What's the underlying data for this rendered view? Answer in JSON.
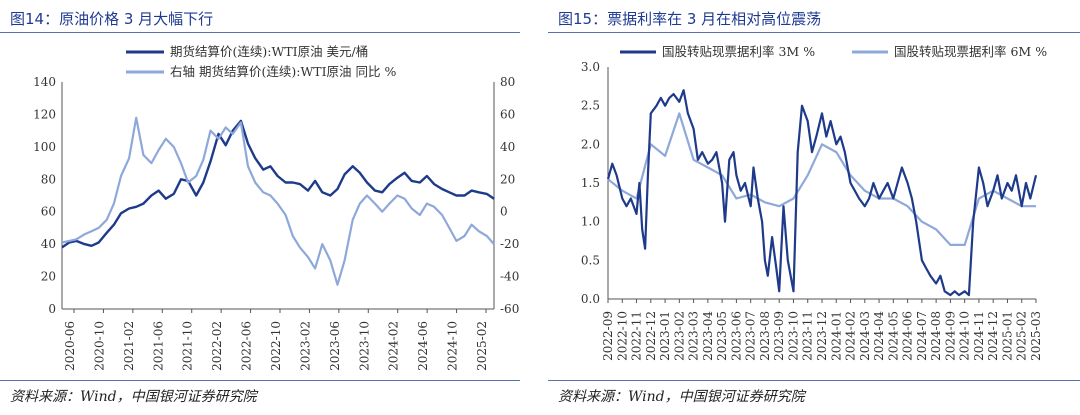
{
  "charts": {
    "left": {
      "fig_title": "图14：原油价格 3 月大幅下行",
      "source": "资料来源：Wind，中国银河证券研究院"
    },
    "right": {
      "fig_title": "图15：票据利率在 3 月在相对高位震荡",
      "source": "资料来源：Wind，中国银河证券研究院"
    }
  },
  "chart_data": [
    {
      "type": "line",
      "title": "图14：原油价格 3 月大幅下行",
      "x_ticks": [
        "2020-06",
        "2020-10",
        "2021-02",
        "2021-06",
        "2021-10",
        "2022-02",
        "2022-06",
        "2022-10",
        "2023-02",
        "2023-06",
        "2023-10",
        "2024-02",
        "2024-06",
        "2024-10",
        "2025-02"
      ],
      "y_left": {
        "min": 0,
        "max": 140,
        "ticks": [
          0,
          20,
          40,
          60,
          80,
          100,
          120,
          140
        ]
      },
      "y_right": {
        "min": -60,
        "max": 80,
        "ticks": [
          -60,
          -40,
          -20,
          0,
          20,
          40,
          60,
          80
        ]
      },
      "grid": false,
      "legend_position": "top",
      "series": [
        {
          "name": "期货结算价(连续):WTI原油 美元/桶",
          "axis": "left",
          "color": "#1e3a8a",
          "x": [
            2020.42,
            2020.5,
            2020.58,
            2020.67,
            2020.75,
            2020.83,
            2020.92,
            2021.0,
            2021.08,
            2021.17,
            2021.25,
            2021.33,
            2021.42,
            2021.5,
            2021.58,
            2021.67,
            2021.75,
            2021.83,
            2021.92,
            2022.0,
            2022.08,
            2022.17,
            2022.25,
            2022.33,
            2022.42,
            2022.5,
            2022.58,
            2022.67,
            2022.75,
            2022.83,
            2022.92,
            2023.0,
            2023.08,
            2023.17,
            2023.25,
            2023.33,
            2023.42,
            2023.5,
            2023.58,
            2023.67,
            2023.75,
            2023.83,
            2023.92,
            2024.0,
            2024.08,
            2024.17,
            2024.25,
            2024.33,
            2024.42,
            2024.5,
            2024.58,
            2024.67,
            2024.75,
            2024.83,
            2024.92,
            2025.0,
            2025.08,
            2025.17,
            2025.25
          ],
          "y": [
            38,
            41,
            42,
            40,
            39,
            41,
            47,
            52,
            59,
            62,
            63,
            65,
            70,
            73,
            68,
            71,
            80,
            79,
            70,
            78,
            91,
            108,
            101,
            110,
            116,
            102,
            93,
            86,
            88,
            82,
            78,
            78,
            77,
            73,
            79,
            72,
            70,
            74,
            83,
            88,
            84,
            78,
            73,
            72,
            77,
            81,
            84,
            79,
            78,
            82,
            77,
            74,
            72,
            70,
            70,
            73,
            72,
            71,
            68
          ]
        },
        {
          "name": "右轴 期货结算价(连续):WTI原油 同比 %",
          "axis": "right",
          "color": "#8fa8da",
          "x": [
            2020.42,
            2020.5,
            2020.58,
            2020.67,
            2020.75,
            2020.83,
            2020.92,
            2021.0,
            2021.08,
            2021.17,
            2021.25,
            2021.33,
            2021.42,
            2021.5,
            2021.58,
            2021.67,
            2021.75,
            2021.83,
            2021.92,
            2022.0,
            2022.08,
            2022.17,
            2022.25,
            2022.33,
            2022.42,
            2022.5,
            2022.58,
            2022.67,
            2022.75,
            2022.83,
            2022.92,
            2023.0,
            2023.08,
            2023.17,
            2023.25,
            2023.33,
            2023.42,
            2023.5,
            2023.58,
            2023.67,
            2023.75,
            2023.83,
            2023.92,
            2024.0,
            2024.08,
            2024.17,
            2024.25,
            2024.33,
            2024.42,
            2024.5,
            2024.58,
            2024.67,
            2024.75,
            2024.83,
            2024.92,
            2025.0,
            2025.08,
            2025.17,
            2025.25
          ],
          "y": [
            -19,
            -18,
            -17,
            -14,
            -12,
            -10,
            -5,
            5,
            22,
            33,
            58,
            35,
            30,
            38,
            45,
            40,
            30,
            18,
            22,
            32,
            50,
            45,
            52,
            48,
            55,
            28,
            18,
            12,
            10,
            5,
            -2,
            -15,
            -22,
            -28,
            -35,
            -20,
            -30,
            -45,
            -30,
            -5,
            5,
            10,
            5,
            0,
            5,
            10,
            8,
            2,
            -2,
            5,
            3,
            -2,
            -10,
            -18,
            -15,
            -8,
            -12,
            -15,
            -20
          ]
        }
      ]
    },
    {
      "type": "line",
      "title": "图15：票据利率在 3 月在相对高位震荡",
      "x_ticks": [
        "2022-09",
        "2022-10",
        "2022-11",
        "2022-12",
        "2023-01",
        "2023-02",
        "2023-03",
        "2023-04",
        "2023-05",
        "2023-06",
        "2023-07",
        "2023-08",
        "2023-09",
        "2023-10",
        "2023-11",
        "2023-12",
        "2024-01",
        "2024-02",
        "2024-03",
        "2024-04",
        "2024-05",
        "2024-06",
        "2024-07",
        "2024-08",
        "2024-09",
        "2024-10",
        "2024-11",
        "2024-12",
        "2025-01",
        "2025-02",
        "2025-03"
      ],
      "y": {
        "min": 0.0,
        "max": 3.0,
        "ticks": [
          0.0,
          0.5,
          1.0,
          1.5,
          2.0,
          2.5,
          3.0
        ]
      },
      "grid": false,
      "legend_position": "top",
      "series": [
        {
          "name": "国股转贴现票据利率 3M %",
          "color": "#1e3a8a",
          "x": [
            0,
            0.3,
            0.6,
            1.0,
            1.3,
            1.6,
            2.0,
            2.2,
            2.4,
            2.6,
            2.8,
            3.0,
            3.4,
            3.7,
            4.0,
            4.3,
            4.6,
            5.0,
            5.3,
            5.6,
            6.0,
            6.3,
            6.6,
            7.0,
            7.3,
            7.6,
            8.0,
            8.2,
            8.5,
            8.8,
            9.0,
            9.3,
            9.6,
            10.0,
            10.2,
            10.5,
            10.8,
            11.0,
            11.2,
            11.5,
            11.8,
            12.0,
            12.3,
            12.6,
            13.0,
            13.3,
            13.6,
            14.0,
            14.3,
            14.6,
            15.0,
            15.3,
            15.6,
            16.0,
            16.3,
            16.6,
            17.0,
            17.3,
            17.6,
            18.0,
            18.3,
            18.6,
            19.0,
            19.3,
            19.6,
            20.0,
            20.3,
            20.6,
            21.0,
            21.3,
            21.6,
            22.0,
            22.3,
            22.6,
            23.0,
            23.3,
            23.6,
            24.0,
            24.3,
            24.6,
            25.0,
            25.3,
            25.6,
            26.0,
            26.3,
            26.6,
            27.0,
            27.3,
            27.6,
            28.0,
            28.3,
            28.6,
            29.0,
            29.3,
            29.6,
            30.0
          ],
          "y": [
            1.55,
            1.75,
            1.6,
            1.3,
            1.2,
            1.3,
            1.1,
            1.5,
            0.9,
            0.65,
            1.6,
            2.4,
            2.5,
            2.6,
            2.5,
            2.6,
            2.65,
            2.55,
            2.7,
            2.4,
            2.2,
            1.8,
            1.9,
            1.75,
            1.8,
            1.9,
            1.5,
            1.0,
            1.8,
            1.9,
            1.6,
            1.4,
            1.5,
            1.2,
            1.7,
            1.3,
            1.0,
            0.5,
            0.3,
            0.8,
            0.4,
            0.1,
            1.2,
            0.5,
            0.1,
            1.9,
            2.5,
            2.3,
            1.9,
            2.1,
            2.4,
            2.1,
            2.3,
            2.0,
            2.1,
            1.9,
            1.5,
            1.4,
            1.3,
            1.2,
            1.3,
            1.5,
            1.3,
            1.4,
            1.5,
            1.3,
            1.5,
            1.7,
            1.5,
            1.3,
            1.0,
            0.5,
            0.4,
            0.3,
            0.2,
            0.3,
            0.1,
            0.05,
            0.1,
            0.05,
            0.1,
            0.05,
            1.0,
            1.7,
            1.5,
            1.2,
            1.4,
            1.6,
            1.3,
            1.5,
            1.4,
            1.6,
            1.2,
            1.5,
            1.3,
            1.6
          ]
        },
        {
          "name": "国股转贴现票据利率 6M %",
          "color": "#8fa8da",
          "x": [
            0,
            1.0,
            2.0,
            3.0,
            4.0,
            5.0,
            6.0,
            7.0,
            8.0,
            9.0,
            10.0,
            11.0,
            12.0,
            13.0,
            14.0,
            15.0,
            16.0,
            17.0,
            18.0,
            19.0,
            20.0,
            21.0,
            22.0,
            23.0,
            24.0,
            25.0,
            26.0,
            27.0,
            28.0,
            29.0,
            30.0
          ],
          "y": [
            1.55,
            1.4,
            1.3,
            2.0,
            1.85,
            2.4,
            1.8,
            1.7,
            1.6,
            1.3,
            1.35,
            1.25,
            1.2,
            1.3,
            1.6,
            2.0,
            1.9,
            1.6,
            1.4,
            1.3,
            1.3,
            1.2,
            1.0,
            0.9,
            0.7,
            0.7,
            1.3,
            1.4,
            1.3,
            1.2,
            1.2
          ]
        }
      ]
    }
  ]
}
